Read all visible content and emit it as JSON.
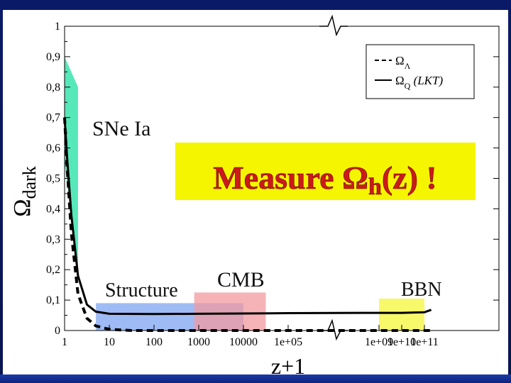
{
  "chart_data": {
    "type": "line",
    "xlabel": "z+1",
    "ylabel_main": "Ω",
    "ylabel_sub": "dark",
    "ylim": [
      0,
      1
    ],
    "y_ticks": [
      "0",
      "0,1",
      "0,2",
      "0,3",
      "0,4",
      "0,5",
      "0,6",
      "0,7",
      "0,8",
      "0,9",
      "1"
    ],
    "x_ticks_left": [
      "1",
      "10",
      "100",
      "1000",
      "10000",
      "1e+05"
    ],
    "x_ticks_right": [
      "1e+09",
      "1e+10",
      "1e+11"
    ],
    "x_scale": "log10 with axis break between 1e+05 and 1e+09",
    "legend": {
      "position": "top-right",
      "entries": [
        {
          "symbol": "Ω",
          "sub": "Λ",
          "style": "dashed",
          "note": ""
        },
        {
          "symbol": "Ω",
          "sub": "Q",
          "style": "solid",
          "note": "(LKT)"
        }
      ]
    },
    "series": [
      {
        "style": "solid",
        "points": [
          [
            0,
            0.7
          ],
          [
            0.05,
            0.58
          ],
          [
            0.15,
            0.38
          ],
          [
            0.3,
            0.18
          ],
          [
            0.5,
            0.085
          ],
          [
            0.7,
            0.062
          ],
          [
            1.0,
            0.055
          ],
          [
            2.0,
            0.054
          ],
          [
            3.0,
            0.055
          ],
          [
            4.0,
            0.056
          ],
          [
            5.0,
            0.057
          ],
          [
            9.0,
            0.058
          ],
          [
            10.0,
            0.058
          ],
          [
            11.0,
            0.06
          ],
          [
            11.3,
            0.068
          ]
        ]
      },
      {
        "style": "dashed",
        "points": [
          [
            0,
            0.7
          ],
          [
            0.05,
            0.55
          ],
          [
            0.15,
            0.32
          ],
          [
            0.3,
            0.12
          ],
          [
            0.5,
            0.04
          ],
          [
            0.7,
            0.015
          ],
          [
            1.0,
            0.004
          ],
          [
            1.5,
            0.0
          ],
          [
            5.0,
            0.0
          ],
          [
            9.0,
            0.0
          ],
          [
            11.3,
            0.0
          ]
        ]
      }
    ],
    "regions": [
      {
        "label": "SNe Ia",
        "color": "#44e6b0",
        "x": [
          0,
          0.3
        ],
        "y_top": [
          0.9,
          0.8
        ],
        "y_bottom": [
          0.55,
          0.18
        ]
      },
      {
        "label": "Structure",
        "color": "#7fa4f2",
        "x": [
          0.7,
          4.0
        ],
        "y": [
          0,
          0.09
        ]
      },
      {
        "label": "CMB",
        "color": "#f29aa0",
        "x": [
          2.9,
          4.5
        ],
        "y": [
          0,
          0.125
        ]
      },
      {
        "label": "BBN",
        "color": "#f5f53a",
        "x": [
          9.0,
          11.0
        ],
        "y": [
          0,
          0.105
        ]
      }
    ],
    "annotations": {
      "callout": "Measure Ω",
      "callout_sub": "h",
      "callout_tail": "(z) !",
      "callout_bg": "#f5f500",
      "callout_color": "#cc1a1a"
    }
  }
}
